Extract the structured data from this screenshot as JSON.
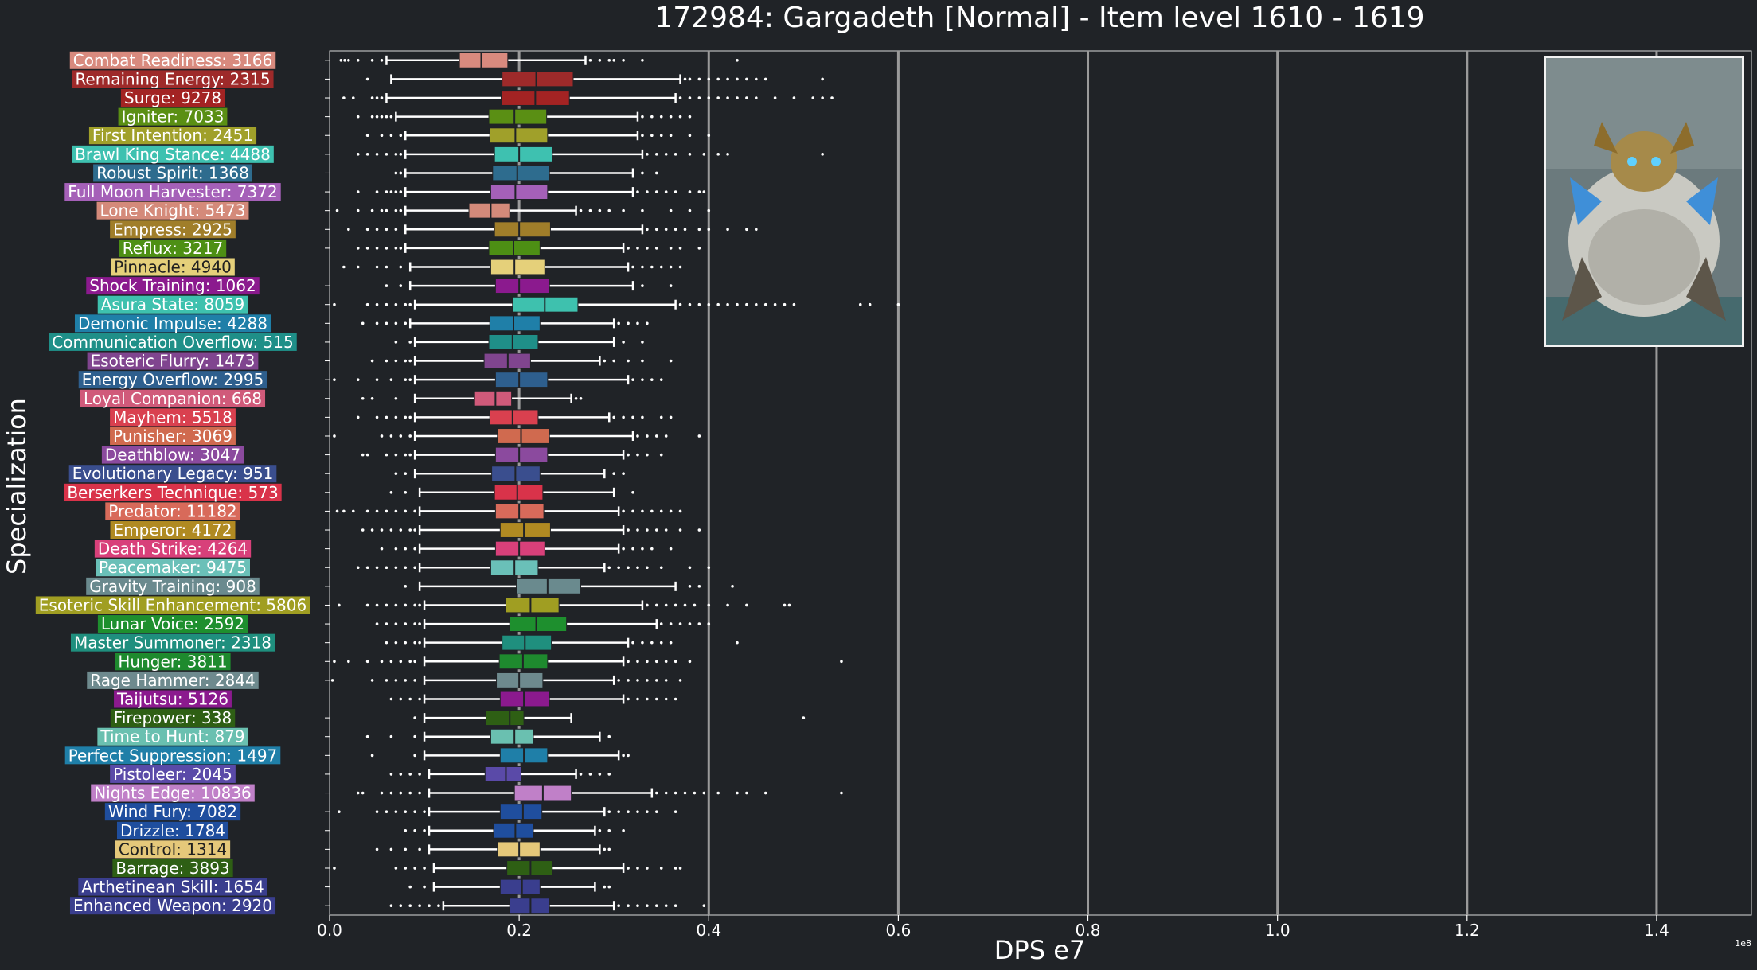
{
  "chart_data": {
    "type": "boxplot",
    "title": "172984: Gargadeth [Normal] - Item level 1610 - 1619",
    "xlabel": "DPS e7",
    "ylabel": "Specialization",
    "offset_text": "1e8",
    "xlim": [
      0,
      1.5
    ],
    "xticks": [
      0.0,
      0.2,
      0.4,
      0.6,
      0.8,
      1.0,
      1.2,
      1.4
    ],
    "xtick_labels": [
      "0.0",
      "0.2",
      "0.4",
      "0.6",
      "0.8",
      "1.0",
      "1.2",
      "1.4"
    ],
    "vlines": [
      0.2,
      0.4,
      0.6,
      0.8,
      1.0,
      1.2,
      1.4
    ],
    "categories": [
      {
        "label": "Combat Readiness: 3166",
        "color": "#d88a7e",
        "q1": 0.137,
        "med": 0.16,
        "q3": 0.188,
        "wlo": 0.06,
        "whi": 0.27,
        "olo": [
          0.012,
          0.016,
          0.02,
          0.03,
          0.045,
          0.055
        ],
        "ohi": [
          0.275,
          0.285,
          0.295,
          0.3,
          0.31,
          0.33,
          0.43
        ]
      },
      {
        "label": "Remaining Energy: 2315",
        "color": "#9e2a2a",
        "q1": 0.182,
        "med": 0.218,
        "q3": 0.257,
        "wlo": 0.065,
        "whi": 0.37,
        "olo": [
          0.04
        ],
        "ohi": [
          0.375,
          0.38,
          0.39,
          0.4,
          0.41,
          0.42,
          0.43,
          0.44,
          0.45,
          0.46,
          0.52
        ]
      },
      {
        "label": "Surge: 9278",
        "color": "#a32323",
        "q1": 0.181,
        "med": 0.217,
        "q3": 0.253,
        "wlo": 0.06,
        "whi": 0.365,
        "olo": [
          0.015,
          0.025,
          0.045,
          0.05,
          0.055
        ],
        "ohi": [
          0.37,
          0.38,
          0.39,
          0.4,
          0.41,
          0.42,
          0.43,
          0.44,
          0.45,
          0.47,
          0.49,
          0.51,
          0.52,
          0.53
        ]
      },
      {
        "label": "Igniter: 7033",
        "color": "#5a8f14",
        "q1": 0.168,
        "med": 0.195,
        "q3": 0.229,
        "wlo": 0.07,
        "whi": 0.325,
        "olo": [
          0.03,
          0.045,
          0.05,
          0.055,
          0.06,
          0.065
        ],
        "ohi": [
          0.33,
          0.34,
          0.35,
          0.36,
          0.37,
          0.38
        ]
      },
      {
        "label": "First Intention: 2451",
        "color": "#a0a02a",
        "q1": 0.169,
        "med": 0.196,
        "q3": 0.23,
        "wlo": 0.08,
        "whi": 0.325,
        "olo": [
          0.04,
          0.055,
          0.065,
          0.075
        ],
        "ohi": [
          0.33,
          0.34,
          0.35,
          0.36,
          0.38,
          0.4
        ]
      },
      {
        "label": "Brawl King Stance: 4488",
        "color": "#3ec1b0",
        "q1": 0.174,
        "med": 0.2,
        "q3": 0.235,
        "wlo": 0.08,
        "whi": 0.33,
        "olo": [
          0.03,
          0.04,
          0.05,
          0.06,
          0.07,
          0.075
        ],
        "ohi": [
          0.335,
          0.345,
          0.355,
          0.365,
          0.38,
          0.395,
          0.41,
          0.42,
          0.52
        ]
      },
      {
        "label": "Robust Spirit: 1368",
        "color": "#2e6c8e",
        "q1": 0.172,
        "med": 0.198,
        "q3": 0.232,
        "wlo": 0.08,
        "whi": 0.32,
        "olo": [
          0.07,
          0.075
        ],
        "ohi": [
          0.33,
          0.345
        ]
      },
      {
        "label": "Full Moon Harvester: 7372",
        "color": "#a560b8",
        "q1": 0.17,
        "med": 0.196,
        "q3": 0.23,
        "wlo": 0.08,
        "whi": 0.32,
        "olo": [
          0.03,
          0.05,
          0.06,
          0.065,
          0.07,
          0.075
        ],
        "ohi": [
          0.325,
          0.335,
          0.345,
          0.355,
          0.365,
          0.38,
          0.39,
          0.395
        ]
      },
      {
        "label": "Lone Knight: 5473",
        "color": "#d48a7a",
        "q1": 0.147,
        "med": 0.17,
        "q3": 0.19,
        "wlo": 0.08,
        "whi": 0.26,
        "olo": [
          0.008,
          0.03,
          0.045,
          0.055,
          0.06,
          0.07,
          0.075
        ],
        "ohi": [
          0.265,
          0.275,
          0.285,
          0.295,
          0.31,
          0.33,
          0.36,
          0.38,
          0.4
        ]
      },
      {
        "label": "Empress: 2925",
        "color": "#a07e2a",
        "q1": 0.174,
        "med": 0.2,
        "q3": 0.233,
        "wlo": 0.08,
        "whi": 0.33,
        "olo": [
          0.02,
          0.04,
          0.05,
          0.06,
          0.07
        ],
        "ohi": [
          0.335,
          0.345,
          0.355,
          0.365,
          0.375,
          0.39,
          0.4,
          0.42,
          0.44,
          0.45
        ]
      },
      {
        "label": "Reflux: 3217",
        "color": "#4d8f14",
        "q1": 0.168,
        "med": 0.194,
        "q3": 0.222,
        "wlo": 0.08,
        "whi": 0.31,
        "olo": [
          0.03,
          0.04,
          0.05,
          0.06,
          0.07,
          0.075
        ],
        "ohi": [
          0.315,
          0.325,
          0.335,
          0.345,
          0.36,
          0.37,
          0.39
        ]
      },
      {
        "label": "Pinnacle: 4940",
        "color": "#e5d07a",
        "q1": 0.17,
        "med": 0.195,
        "q3": 0.227,
        "wlo": 0.085,
        "whi": 0.315,
        "olo": [
          0.015,
          0.03,
          0.05,
          0.06,
          0.075
        ],
        "ohi": [
          0.32,
          0.33,
          0.34,
          0.35,
          0.36,
          0.37
        ]
      },
      {
        "label": "Shock Training: 1062",
        "color": "#8b1a8e",
        "q1": 0.175,
        "med": 0.2,
        "q3": 0.232,
        "wlo": 0.085,
        "whi": 0.32,
        "olo": [
          0.06,
          0.075
        ],
        "ohi": [
          0.33,
          0.36
        ]
      },
      {
        "label": "Asura State: 8059",
        "color": "#3ec1ae",
        "q1": 0.193,
        "med": 0.227,
        "q3": 0.262,
        "wlo": 0.09,
        "whi": 0.365,
        "olo": [
          0.005,
          0.04,
          0.05,
          0.06,
          0.07,
          0.08,
          0.085
        ],
        "ohi": [
          0.37,
          0.38,
          0.39,
          0.4,
          0.41,
          0.42,
          0.43,
          0.44,
          0.45,
          0.46,
          0.47,
          0.48,
          0.49,
          0.56,
          0.57,
          0.6
        ]
      },
      {
        "label": "Demonic Impulse: 4288",
        "color": "#1f7fa8",
        "q1": 0.169,
        "med": 0.194,
        "q3": 0.222,
        "wlo": 0.085,
        "whi": 0.3,
        "olo": [
          0.035,
          0.05,
          0.06,
          0.07,
          0.08
        ],
        "ohi": [
          0.305,
          0.315,
          0.325,
          0.335
        ]
      },
      {
        "label": "Communication Overflow: 515",
        "color": "#1f8f88",
        "q1": 0.168,
        "med": 0.193,
        "q3": 0.22,
        "wlo": 0.09,
        "whi": 0.3,
        "olo": [
          0.07,
          0.085
        ],
        "ohi": [
          0.31,
          0.33
        ]
      },
      {
        "label": "Esoteric Flurry: 1473",
        "color": "#80458f",
        "q1": 0.163,
        "med": 0.188,
        "q3": 0.212,
        "wlo": 0.09,
        "whi": 0.285,
        "olo": [
          0.045,
          0.06,
          0.07,
          0.08,
          0.085
        ],
        "ohi": [
          0.29,
          0.3,
          0.315,
          0.33,
          0.36
        ]
      },
      {
        "label": "Energy Overflow: 2995",
        "color": "#2e5f8e",
        "q1": 0.175,
        "med": 0.2,
        "q3": 0.23,
        "wlo": 0.09,
        "whi": 0.315,
        "olo": [
          0.005,
          0.03,
          0.05,
          0.065,
          0.08,
          0.085
        ],
        "ohi": [
          0.32,
          0.33,
          0.34,
          0.35
        ]
      },
      {
        "label": "Loyal Companion: 668",
        "color": "#d05a7a",
        "q1": 0.153,
        "med": 0.175,
        "q3": 0.192,
        "wlo": 0.09,
        "whi": 0.255,
        "olo": [
          0.035,
          0.045,
          0.07
        ],
        "ohi": [
          0.26,
          0.265
        ]
      },
      {
        "label": "Mayhem: 5518",
        "color": "#d9404f",
        "q1": 0.169,
        "med": 0.193,
        "q3": 0.22,
        "wlo": 0.09,
        "whi": 0.295,
        "olo": [
          0.03,
          0.05,
          0.06,
          0.07,
          0.08,
          0.085
        ],
        "ohi": [
          0.3,
          0.31,
          0.32,
          0.33,
          0.35,
          0.36
        ]
      },
      {
        "label": "Punisher: 3069",
        "color": "#d06a4f",
        "q1": 0.177,
        "med": 0.202,
        "q3": 0.232,
        "wlo": 0.09,
        "whi": 0.32,
        "olo": [
          0.005,
          0.055,
          0.065,
          0.075,
          0.085
        ],
        "ohi": [
          0.325,
          0.335,
          0.345,
          0.355,
          0.39
        ]
      },
      {
        "label": "Deathblow: 3047",
        "color": "#8b4a9e",
        "q1": 0.175,
        "med": 0.2,
        "q3": 0.23,
        "wlo": 0.09,
        "whi": 0.31,
        "olo": [
          0.035,
          0.04,
          0.06,
          0.07,
          0.08,
          0.085
        ],
        "ohi": [
          0.315,
          0.325,
          0.335,
          0.35
        ]
      },
      {
        "label": "Evolutionary Legacy: 951",
        "color": "#3a4e8e",
        "q1": 0.171,
        "med": 0.196,
        "q3": 0.222,
        "wlo": 0.09,
        "whi": 0.29,
        "olo": [
          0.07,
          0.08
        ],
        "ohi": [
          0.3,
          0.31
        ]
      },
      {
        "label": "Berserkers Technique: 573",
        "color": "#d9334a",
        "q1": 0.174,
        "med": 0.198,
        "q3": 0.225,
        "wlo": 0.095,
        "whi": 0.3,
        "olo": [
          0.065,
          0.08
        ],
        "ohi": [
          0.32
        ]
      },
      {
        "label": "Predator: 11182",
        "color": "#d86a5a",
        "q1": 0.175,
        "med": 0.2,
        "q3": 0.226,
        "wlo": 0.095,
        "whi": 0.305,
        "olo": [
          0.008,
          0.015,
          0.025,
          0.04,
          0.05,
          0.06,
          0.07,
          0.08,
          0.09
        ],
        "ohi": [
          0.31,
          0.32,
          0.33,
          0.34,
          0.35,
          0.36,
          0.37
        ]
      },
      {
        "label": "Emperor: 4172",
        "color": "#b08a22",
        "q1": 0.18,
        "med": 0.205,
        "q3": 0.233,
        "wlo": 0.095,
        "whi": 0.31,
        "olo": [
          0.035,
          0.045,
          0.055,
          0.065,
          0.075,
          0.085,
          0.09
        ],
        "ohi": [
          0.315,
          0.325,
          0.335,
          0.345,
          0.355,
          0.37,
          0.39
        ]
      },
      {
        "label": "Death Strike: 4264",
        "color": "#d8407a",
        "q1": 0.175,
        "med": 0.2,
        "q3": 0.227,
        "wlo": 0.095,
        "whi": 0.305,
        "olo": [
          0.055,
          0.07,
          0.08,
          0.09
        ],
        "ohi": [
          0.31,
          0.32,
          0.33,
          0.34,
          0.36
        ]
      },
      {
        "label": "Peacemaker: 9475",
        "color": "#6ac0b8",
        "q1": 0.17,
        "med": 0.195,
        "q3": 0.22,
        "wlo": 0.095,
        "whi": 0.29,
        "olo": [
          0.03,
          0.04,
          0.05,
          0.06,
          0.07,
          0.08,
          0.09
        ],
        "ohi": [
          0.295,
          0.305,
          0.315,
          0.325,
          0.335,
          0.35,
          0.38,
          0.4
        ]
      },
      {
        "label": "Gravity Training: 908",
        "color": "#6a8a8e",
        "q1": 0.197,
        "med": 0.23,
        "q3": 0.265,
        "wlo": 0.095,
        "whi": 0.365,
        "olo": [
          0.08
        ],
        "ohi": [
          0.38,
          0.39,
          0.425
        ]
      },
      {
        "label": "Esoteric Skill Enhancement: 5806",
        "color": "#a09e22",
        "q1": 0.186,
        "med": 0.212,
        "q3": 0.242,
        "wlo": 0.1,
        "whi": 0.33,
        "olo": [
          0.01,
          0.04,
          0.05,
          0.06,
          0.07,
          0.08,
          0.09,
          0.095
        ],
        "ohi": [
          0.335,
          0.345,
          0.355,
          0.365,
          0.375,
          0.385,
          0.4,
          0.42,
          0.44,
          0.48,
          0.485
        ]
      },
      {
        "label": "Lunar Voice: 2592",
        "color": "#1e8f2e",
        "q1": 0.19,
        "med": 0.218,
        "q3": 0.25,
        "wlo": 0.1,
        "whi": 0.345,
        "olo": [
          0.05,
          0.06,
          0.07,
          0.08,
          0.09,
          0.095
        ],
        "ohi": [
          0.35,
          0.36,
          0.37,
          0.38,
          0.39,
          0.4
        ]
      },
      {
        "label": "Master Summoner: 2318",
        "color": "#1f8f7e",
        "q1": 0.182,
        "med": 0.206,
        "q3": 0.234,
        "wlo": 0.1,
        "whi": 0.315,
        "olo": [
          0.06,
          0.07,
          0.08,
          0.09,
          0.095
        ],
        "ohi": [
          0.32,
          0.33,
          0.34,
          0.35,
          0.36,
          0.43
        ]
      },
      {
        "label": "Hunger: 3811",
        "color": "#1e8a2e",
        "q1": 0.179,
        "med": 0.204,
        "q3": 0.23,
        "wlo": 0.1,
        "whi": 0.31,
        "olo": [
          0.005,
          0.02,
          0.04,
          0.055,
          0.065,
          0.075,
          0.085,
          0.09
        ],
        "ohi": [
          0.315,
          0.325,
          0.335,
          0.345,
          0.355,
          0.365,
          0.38,
          0.54
        ]
      },
      {
        "label": "Rage Hammer: 2844",
        "color": "#6e8a8e",
        "q1": 0.176,
        "med": 0.2,
        "q3": 0.225,
        "wlo": 0.1,
        "whi": 0.3,
        "olo": [
          0.003,
          0.045,
          0.06,
          0.07,
          0.08,
          0.09
        ],
        "ohi": [
          0.305,
          0.315,
          0.325,
          0.335,
          0.345,
          0.355,
          0.37
        ]
      },
      {
        "label": "Taijutsu: 5126",
        "color": "#8b1a8e",
        "q1": 0.18,
        "med": 0.205,
        "q3": 0.232,
        "wlo": 0.1,
        "whi": 0.31,
        "olo": [
          0.065,
          0.075,
          0.085,
          0.095
        ],
        "ohi": [
          0.315,
          0.325,
          0.335,
          0.345,
          0.355,
          0.365
        ]
      },
      {
        "label": "Firepower: 338",
        "color": "#2e5f14",
        "q1": 0.165,
        "med": 0.19,
        "q3": 0.205,
        "wlo": 0.1,
        "whi": 0.255,
        "olo": [
          0.09
        ],
        "ohi": [
          0.5
        ]
      },
      {
        "label": "Time to Hunt: 879",
        "color": "#6ac0b0",
        "q1": 0.17,
        "med": 0.195,
        "q3": 0.215,
        "wlo": 0.1,
        "whi": 0.285,
        "olo": [
          0.04,
          0.065,
          0.09
        ],
        "ohi": [
          0.295
        ]
      },
      {
        "label": "Perfect Suppression: 1497",
        "color": "#1f7fa8",
        "q1": 0.18,
        "med": 0.205,
        "q3": 0.23,
        "wlo": 0.1,
        "whi": 0.305,
        "olo": [
          0.045,
          0.09
        ],
        "ohi": [
          0.31,
          0.315
        ]
      },
      {
        "label": "Pistoleer: 2045",
        "color": "#5a4aa8",
        "q1": 0.164,
        "med": 0.186,
        "q3": 0.202,
        "wlo": 0.105,
        "whi": 0.26,
        "olo": [
          0.065,
          0.075,
          0.085,
          0.095
        ],
        "ohi": [
          0.265,
          0.275,
          0.285,
          0.295
        ]
      },
      {
        "label": "Nights Edge: 10836",
        "color": "#c080c8",
        "q1": 0.195,
        "med": 0.225,
        "q3": 0.255,
        "wlo": 0.105,
        "whi": 0.34,
        "olo": [
          0.03,
          0.035,
          0.055,
          0.065,
          0.075,
          0.085,
          0.095
        ],
        "ohi": [
          0.345,
          0.355,
          0.365,
          0.375,
          0.385,
          0.395,
          0.41,
          0.43,
          0.44,
          0.46,
          0.54
        ]
      },
      {
        "label": "Wind Fury: 7082",
        "color": "#1f4e9e",
        "q1": 0.18,
        "med": 0.204,
        "q3": 0.224,
        "wlo": 0.105,
        "whi": 0.29,
        "olo": [
          0.01,
          0.05,
          0.06,
          0.07,
          0.08,
          0.09,
          0.1
        ],
        "ohi": [
          0.295,
          0.305,
          0.315,
          0.325,
          0.335,
          0.345,
          0.365
        ]
      },
      {
        "label": "Drizzle: 1784",
        "color": "#1f4e9e",
        "q1": 0.173,
        "med": 0.196,
        "q3": 0.215,
        "wlo": 0.105,
        "whi": 0.28,
        "olo": [
          0.08,
          0.09,
          0.1
        ],
        "ohi": [
          0.285,
          0.295,
          0.31
        ]
      },
      {
        "label": "Control: 1314",
        "color": "#e5c87a",
        "q1": 0.177,
        "med": 0.2,
        "q3": 0.222,
        "wlo": 0.105,
        "whi": 0.285,
        "olo": [
          0.05,
          0.065,
          0.08,
          0.095
        ],
        "ohi": [
          0.29,
          0.295
        ]
      },
      {
        "label": "Barrage: 3893",
        "color": "#2e5f14",
        "q1": 0.187,
        "med": 0.212,
        "q3": 0.235,
        "wlo": 0.11,
        "whi": 0.31,
        "olo": [
          0.005,
          0.07,
          0.08,
          0.09,
          0.1
        ],
        "ohi": [
          0.315,
          0.325,
          0.335,
          0.35,
          0.365,
          0.37
        ]
      },
      {
        "label": "Arthetinean Skill: 1654",
        "color": "#3a3e8e",
        "q1": 0.18,
        "med": 0.203,
        "q3": 0.222,
        "wlo": 0.11,
        "whi": 0.28,
        "olo": [
          0.085,
          0.1
        ],
        "ohi": [
          0.29,
          0.295
        ]
      },
      {
        "label": "Enhanced Weapon: 2920",
        "color": "#3a3e8e",
        "q1": 0.19,
        "med": 0.212,
        "q3": 0.232,
        "wlo": 0.12,
        "whi": 0.3,
        "olo": [
          0.065,
          0.075,
          0.085,
          0.095,
          0.105,
          0.115
        ],
        "ohi": [
          0.305,
          0.315,
          0.325,
          0.335,
          0.345,
          0.355,
          0.365,
          0.395
        ]
      }
    ]
  }
}
